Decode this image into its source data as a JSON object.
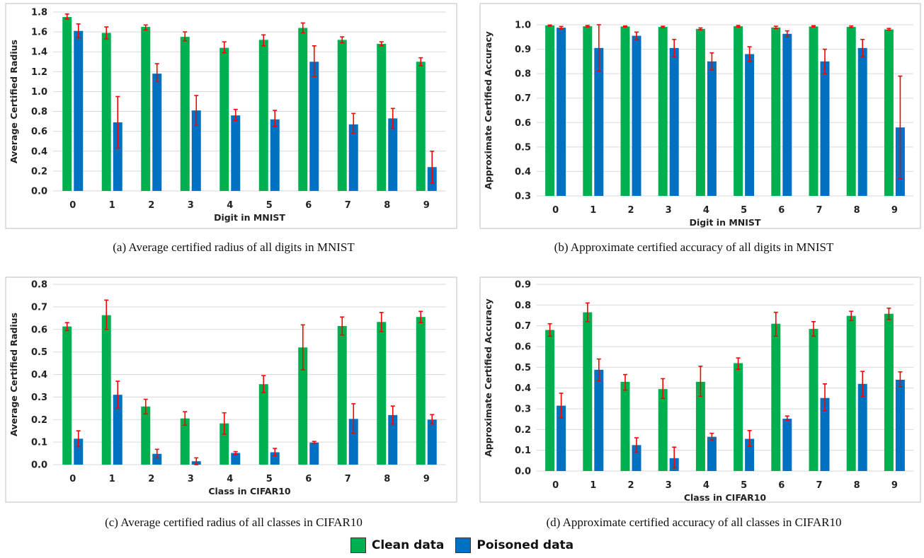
{
  "legend": {
    "items": [
      {
        "label": "Clean data",
        "color": "#00b050"
      },
      {
        "label": "Poisoned data",
        "color": "#0070c0"
      }
    ]
  },
  "colors": {
    "clean": "#00b050",
    "poisoned": "#0070c0",
    "error": "#ff0000",
    "grid": "#d9d9d9",
    "frame": "#bfbfbf"
  },
  "captions": [
    "(a)  Average certified radius of all digits in MNIST",
    "(b)  Approximate certified accuracy of all digits in MNIST",
    "(c)  Average certified radius of all classes in CIFAR10",
    "(d)  Approximate certified accuracy of all classes in CIFAR10"
  ],
  "chart_data": [
    {
      "type": "bar",
      "xlabel": "Digit in MNIST",
      "ylabel": "Average Certified Radius",
      "ylim": [
        0,
        1.8
      ],
      "yticks": [
        0.0,
        0.2,
        0.4,
        0.6,
        0.8,
        1.0,
        1.2,
        1.4,
        1.6,
        1.8
      ],
      "tick_decimals": 1,
      "grid": true,
      "categories": [
        "0",
        "1",
        "2",
        "3",
        "4",
        "5",
        "6",
        "7",
        "8",
        "9"
      ],
      "series": [
        {
          "name": "Clean data",
          "values": [
            1.75,
            1.59,
            1.65,
            1.55,
            1.44,
            1.52,
            1.64,
            1.52,
            1.48,
            1.3
          ],
          "err_low": [
            1.73,
            1.53,
            1.62,
            1.51,
            1.39,
            1.46,
            1.59,
            1.49,
            1.46,
            1.26
          ],
          "err_high": [
            1.78,
            1.65,
            1.67,
            1.6,
            1.5,
            1.57,
            1.69,
            1.55,
            1.5,
            1.34
          ]
        },
        {
          "name": "Poisoned data",
          "values": [
            1.61,
            0.69,
            1.18,
            0.81,
            0.76,
            0.72,
            1.3,
            0.67,
            0.73,
            0.24
          ],
          "err_low": [
            1.54,
            0.43,
            1.1,
            0.66,
            0.71,
            0.65,
            1.15,
            0.58,
            0.63,
            0.08
          ],
          "err_high": [
            1.68,
            0.95,
            1.28,
            0.96,
            0.82,
            0.81,
            1.46,
            0.78,
            0.83,
            0.4
          ]
        }
      ]
    },
    {
      "type": "bar",
      "xlabel": "Digit in MNIST",
      "ylabel": "Approximate Certified Accuracy",
      "ylim": [
        0.3,
        1.0
      ],
      "yticks": [
        0.3,
        0.4,
        0.5,
        0.6,
        0.7,
        0.8,
        0.9,
        1.0
      ],
      "tick_decimals": 1,
      "grid": true,
      "categories": [
        "0",
        "1",
        "2",
        "3",
        "4",
        "5",
        "6",
        "7",
        "8",
        "9"
      ],
      "series": [
        {
          "name": "Clean data",
          "values": [
            0.997,
            0.994,
            0.993,
            0.991,
            0.983,
            0.994,
            0.989,
            0.993,
            0.991,
            0.981
          ],
          "err_low": [
            0.995,
            0.991,
            0.991,
            0.988,
            0.979,
            0.991,
            0.984,
            0.991,
            0.988,
            0.978
          ],
          "err_high": [
            0.999,
            0.997,
            0.995,
            0.994,
            0.987,
            0.997,
            0.994,
            0.996,
            0.995,
            0.985
          ]
        },
        {
          "name": "Poisoned data",
          "values": [
            0.988,
            0.905,
            0.955,
            0.905,
            0.85,
            0.88,
            0.963,
            0.85,
            0.905,
            0.58
          ],
          "err_low": [
            0.983,
            0.81,
            0.94,
            0.87,
            0.815,
            0.85,
            0.952,
            0.8,
            0.87,
            0.37
          ],
          "err_high": [
            0.993,
            1.0,
            0.97,
            0.94,
            0.885,
            0.91,
            0.975,
            0.9,
            0.94,
            0.79
          ]
        }
      ]
    },
    {
      "type": "bar",
      "xlabel": "Class in CIFAR10",
      "ylabel": "Average Certified Radius",
      "ylim": [
        0,
        0.8
      ],
      "yticks": [
        0.0,
        0.1,
        0.2,
        0.3,
        0.4,
        0.5,
        0.6,
        0.7,
        0.8
      ],
      "tick_decimals": 1,
      "grid": true,
      "categories": [
        "0",
        "1",
        "2",
        "3",
        "4",
        "5",
        "6",
        "7",
        "8",
        "9"
      ],
      "series": [
        {
          "name": "Clean data",
          "values": [
            0.613,
            0.663,
            0.258,
            0.205,
            0.183,
            0.357,
            0.52,
            0.615,
            0.633,
            0.655
          ],
          "err_low": [
            0.595,
            0.6,
            0.225,
            0.175,
            0.135,
            0.32,
            0.42,
            0.575,
            0.59,
            0.63
          ],
          "err_high": [
            0.63,
            0.73,
            0.29,
            0.235,
            0.23,
            0.395,
            0.62,
            0.655,
            0.675,
            0.68
          ]
        },
        {
          "name": "Poisoned data",
          "values": [
            0.115,
            0.31,
            0.048,
            0.015,
            0.052,
            0.055,
            0.098,
            0.203,
            0.22,
            0.2
          ],
          "err_low": [
            0.08,
            0.25,
            0.03,
            0.0,
            0.045,
            0.04,
            0.093,
            0.14,
            0.18,
            0.18
          ],
          "err_high": [
            0.15,
            0.37,
            0.068,
            0.03,
            0.058,
            0.072,
            0.103,
            0.27,
            0.26,
            0.222
          ]
        }
      ]
    },
    {
      "type": "bar",
      "xlabel": "Class in CIFAR10",
      "ylabel": "Approximate Certified Accuracy",
      "ylim": [
        0,
        0.9
      ],
      "yticks": [
        0.0,
        0.1,
        0.2,
        0.3,
        0.4,
        0.5,
        0.6,
        0.7,
        0.8,
        0.9
      ],
      "tick_decimals": 1,
      "grid": true,
      "categories": [
        "0",
        "1",
        "2",
        "3",
        "4",
        "5",
        "6",
        "7",
        "8",
        "9"
      ],
      "series": [
        {
          "name": "Clean data",
          "values": [
            0.68,
            0.765,
            0.43,
            0.395,
            0.43,
            0.52,
            0.71,
            0.685,
            0.748,
            0.758
          ],
          "err_low": [
            0.65,
            0.72,
            0.39,
            0.35,
            0.36,
            0.49,
            0.65,
            0.65,
            0.725,
            0.73
          ],
          "err_high": [
            0.71,
            0.81,
            0.465,
            0.445,
            0.505,
            0.545,
            0.765,
            0.72,
            0.77,
            0.785
          ]
        },
        {
          "name": "Poisoned data",
          "values": [
            0.315,
            0.488,
            0.125,
            0.062,
            0.165,
            0.155,
            0.252,
            0.352,
            0.42,
            0.44
          ],
          "err_low": [
            0.255,
            0.435,
            0.09,
            0.015,
            0.15,
            0.12,
            0.245,
            0.29,
            0.36,
            0.405
          ],
          "err_high": [
            0.375,
            0.54,
            0.16,
            0.115,
            0.182,
            0.195,
            0.265,
            0.42,
            0.48,
            0.478
          ]
        }
      ]
    }
  ]
}
